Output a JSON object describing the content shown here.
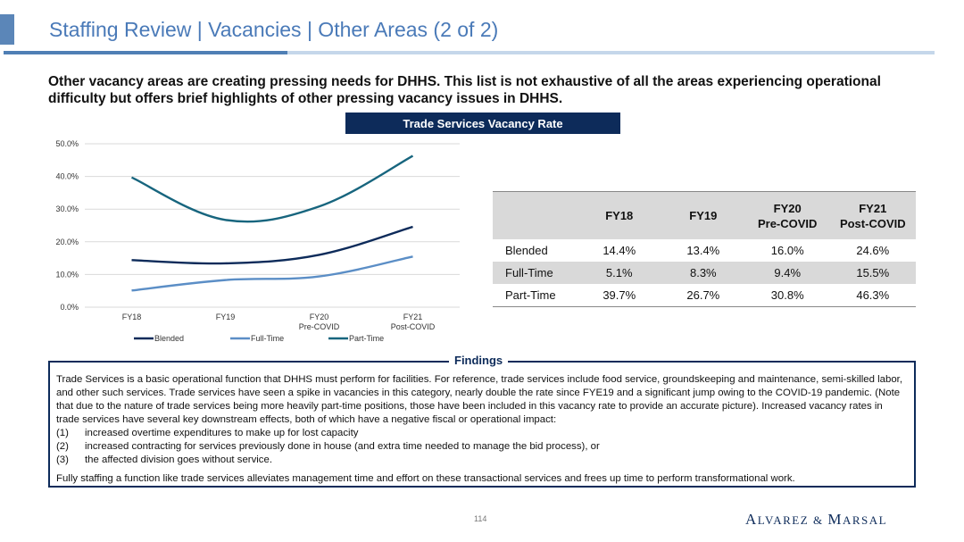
{
  "header": {
    "title": "Staffing Review | Vacancies | Other Areas (2 of 2)"
  },
  "intro": "Other vacancy areas are creating pressing needs for DHHS. This list is not exhaustive of all the areas experiencing operational difficulty but offers brief highlights of other pressing vacancy issues in DHHS.",
  "chart_header": "Trade Services Vacancy Rate",
  "chart_data": {
    "type": "line",
    "categories": [
      "FY18",
      "FY19",
      "FY20\nPre-COVID",
      "FY21\nPost-COVID"
    ],
    "series": [
      {
        "name": "Blended",
        "values": [
          14.4,
          13.4,
          16.0,
          24.6
        ],
        "color": "#0d2b5a"
      },
      {
        "name": "Full-Time",
        "values": [
          5.1,
          8.3,
          9.4,
          15.5
        ],
        "color": "#5b8ec6"
      },
      {
        "name": "Part-Time",
        "values": [
          39.7,
          26.7,
          30.8,
          46.3
        ],
        "color": "#17657e"
      }
    ],
    "yticks": [
      "0.0%",
      "10.0%",
      "20.0%",
      "30.0%",
      "40.0%",
      "50.0%"
    ],
    "ylim": [
      0,
      50
    ],
    "grid": true,
    "legend": "bottom"
  },
  "table": {
    "headers": [
      "",
      "FY18",
      "FY19",
      "FY20\nPre-COVID",
      "FY21\nPost-COVID"
    ],
    "rows": [
      {
        "label": "Blended",
        "cells": [
          "14.4%",
          "13.4%",
          "16.0%",
          "24.6%"
        ]
      },
      {
        "label": "Full-Time",
        "cells": [
          "5.1%",
          "8.3%",
          "9.4%",
          "15.5%"
        ]
      },
      {
        "label": "Part-Time",
        "cells": [
          "39.7%",
          "26.7%",
          "30.8%",
          "46.3%"
        ]
      }
    ]
  },
  "findings": {
    "title": "Findings",
    "paragraph": "Trade Services is a basic operational function that DHHS must perform for facilities. For reference, trade services include food service, groundskeeping and maintenance, semi-skilled labor, and other such services. Trade services have seen a spike in vacancies in this category, nearly double the rate since FYE19 and a significant jump owing to the COVID-19 pandemic. (Note that due to the nature of trade services being more heavily part-time positions, those have been included in this vacancy rate to provide an accurate picture). Increased vacancy rates in trade services have several key downstream effects, both of which have a negative fiscal or operational impact:",
    "items": [
      {
        "num": "(1)",
        "text": "increased overtime expenditures to make up for lost capacity"
      },
      {
        "num": "(2)",
        "text": "increased contracting for services previously done in house (and extra time needed to manage the bid process), or"
      },
      {
        "num": "(3)",
        "text": "the affected division goes without service."
      }
    ],
    "closing": "Fully staffing a function like trade services alleviates management time and effort on these transactional services and frees up time to perform transformational work."
  },
  "footer": {
    "page_number": "114",
    "logo_a": "A",
    "logo_lvarez": "LVAREZ",
    "logo_amp": " & ",
    "logo_m": "M",
    "logo_arsal": "ARSAL"
  }
}
